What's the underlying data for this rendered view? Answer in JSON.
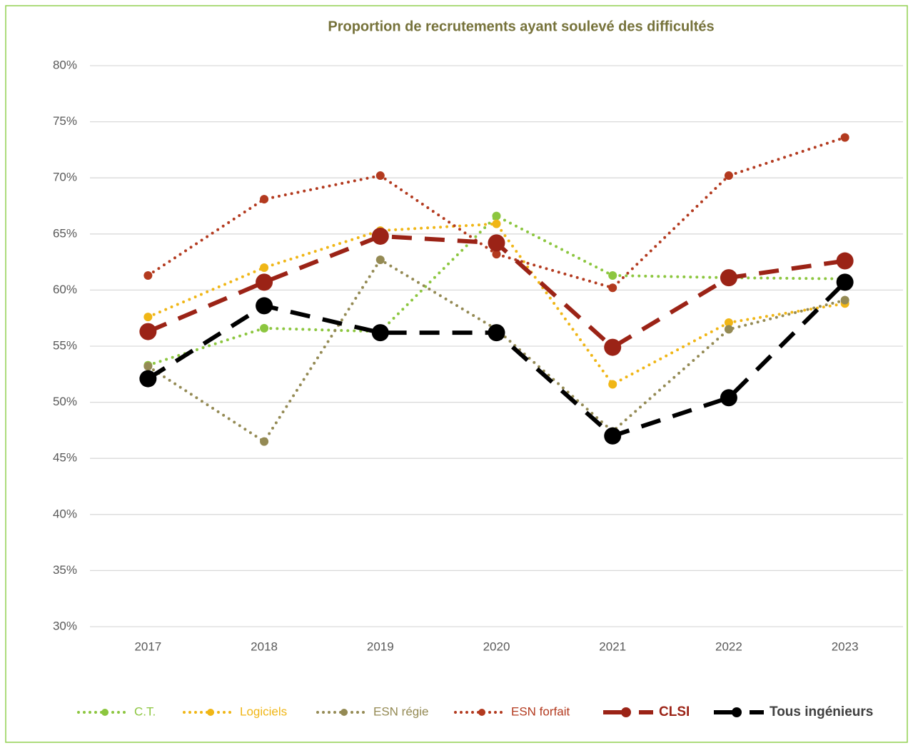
{
  "chart_data": {
    "type": "line",
    "title": "Proportion de recrutements ayant soulevé des difficultés",
    "categories": [
      "2017",
      "2018",
      "2019",
      "2020",
      "2021",
      "2022",
      "2023"
    ],
    "series": [
      {
        "name": "C.T.",
        "color": "#8cc63f",
        "style": "dotted",
        "values": [
          53.3,
          56.6,
          56.3,
          66.6,
          61.3,
          61.1,
          61.0
        ]
      },
      {
        "name": "Logiciels",
        "color": "#f0b616",
        "style": "dotted",
        "values": [
          57.6,
          62.0,
          65.3,
          65.9,
          51.6,
          57.1,
          58.8
        ]
      },
      {
        "name": "ESN régie",
        "color": "#948a54",
        "style": "dotted",
        "values": [
          53.2,
          46.5,
          62.7,
          56.5,
          47.4,
          56.5,
          59.1
        ]
      },
      {
        "name": "ESN forfait",
        "color": "#b33a1f",
        "style": "dotted",
        "values": [
          61.3,
          68.1,
          70.2,
          63.2,
          60.2,
          70.2,
          73.6
        ]
      },
      {
        "name": "CLSI",
        "color": "#9b2316",
        "style": "dashed",
        "values": [
          56.3,
          60.7,
          64.8,
          64.2,
          54.9,
          61.1,
          62.6
        ]
      },
      {
        "name": "Tous ingénieurs",
        "color": "#000000",
        "style": "dashed",
        "values": [
          52.1,
          58.6,
          56.2,
          56.2,
          47.0,
          50.4,
          60.7
        ]
      }
    ],
    "ylim": [
      30,
      80
    ],
    "yticks": [
      {
        "value": 30,
        "label": "30%"
      },
      {
        "value": 35,
        "label": "35%"
      },
      {
        "value": 40,
        "label": "40%"
      },
      {
        "value": 45,
        "label": "45%"
      },
      {
        "value": 50,
        "label": "50%"
      },
      {
        "value": 55,
        "label": "55%"
      },
      {
        "value": 60,
        "label": "60%"
      },
      {
        "value": 65,
        "label": "65%"
      },
      {
        "value": 70,
        "label": "70%"
      },
      {
        "value": 75,
        "label": "75%"
      },
      {
        "value": 80,
        "label": "80%"
      }
    ],
    "grid": true,
    "legend": "bottom"
  }
}
